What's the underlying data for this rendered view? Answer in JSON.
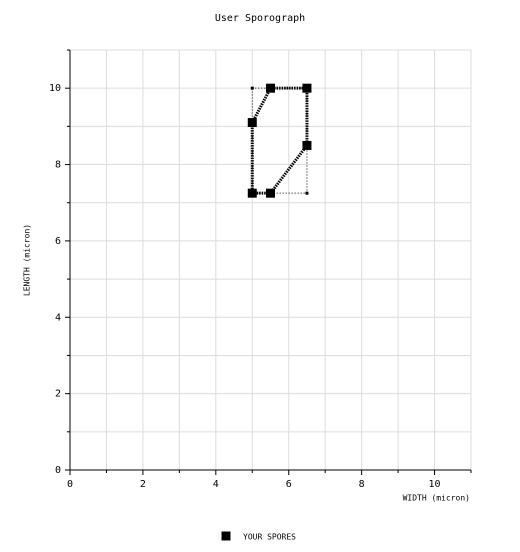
{
  "chart_data": {
    "type": "scatter",
    "title": "User Sporograph",
    "x_label": "WIDTH (micron)",
    "y_label": "LENGTH (micron)",
    "xlim": [
      0,
      11
    ],
    "ylim": [
      0,
      11
    ],
    "xticks": [
      0,
      2,
      4,
      6,
      8,
      10
    ],
    "yticks": [
      0,
      2,
      4,
      6,
      8,
      10
    ],
    "minor_xticks": [
      1,
      3,
      5,
      7,
      9,
      11
    ],
    "minor_yticks": [
      1,
      3,
      5,
      7,
      9,
      11
    ],
    "grid": true,
    "legend": "bottom",
    "series": [
      {
        "name": "YOUR SPORES",
        "color": "#000000",
        "x": [
          5,
          5.5,
          6.5,
          6.5,
          5.5,
          5
        ],
        "values": [
          9.1,
          10,
          10,
          8.5,
          7.25,
          7.25
        ]
      }
    ]
  }
}
